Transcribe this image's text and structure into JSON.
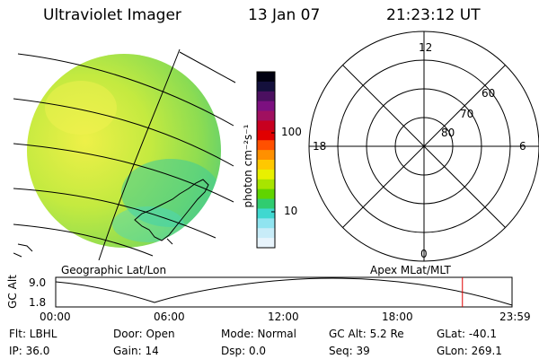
{
  "header": {
    "instrument": "Ultraviolet Imager",
    "date": "13 Jan 07",
    "time": "21:23:12 UT"
  },
  "colorbar": {
    "unit_label": "photon cm⁻²s⁻¹",
    "ticks": [
      "100",
      "10"
    ],
    "colors": [
      "#000010",
      "#14103c",
      "#4b1060",
      "#7c1080",
      "#a01060",
      "#c80020",
      "#e10000",
      "#ff5000",
      "#ff9000",
      "#ffc800",
      "#e8f000",
      "#a8e400",
      "#60d400",
      "#30cc70",
      "#40d8d0",
      "#90e4f0",
      "#c8ecf8",
      "#e8f4fc"
    ]
  },
  "panels": {
    "left_label": "Geographic Lat/Lon",
    "right_label": "Apex MLat/MLT"
  },
  "polar_plot": {
    "mlt_labels": [
      "12",
      "18",
      "6",
      "0"
    ],
    "mlat_labels": [
      "60",
      "70",
      "80"
    ]
  },
  "altitude_plot": {
    "ylabel": "GC Alt",
    "yticks": [
      "9.0",
      "1.8"
    ],
    "xticks": [
      "00:00",
      "06:00",
      "12:00",
      "18:00",
      "23:59"
    ],
    "current_time_marker_hours": 21.39
  },
  "info": {
    "filter_label": "Flt: LBHL",
    "door_label": "Door: Open",
    "mode_label": "Mode: Normal",
    "gc_alt_label": "GC Alt: 5.2 Re",
    "glat_label": "GLat: -40.1",
    "ip_label": "IP: 36.0",
    "gain_label": "Gain: 14",
    "dsp_label": "Dsp:    0.0",
    "seq_label": "Seq: 39",
    "glon_label": "GLon: 269.1"
  }
}
